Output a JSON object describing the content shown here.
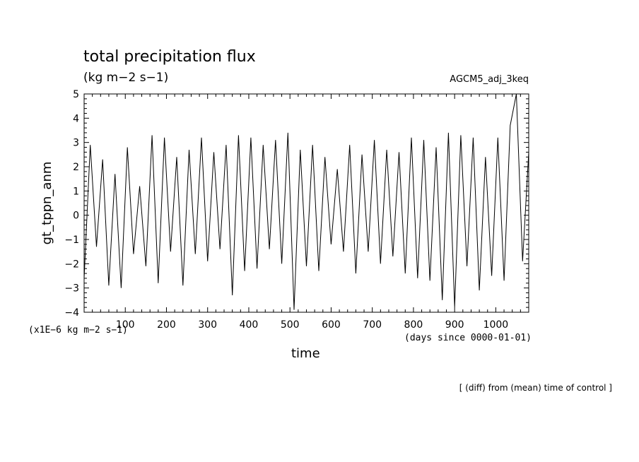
{
  "header": {
    "title": "total precipitation flux",
    "subtitle": "(kg m−2 s−1)",
    "run_name": "AGCM5_adj_3keq"
  },
  "notes": {
    "unit_scale": "(x1E−6 kg m−2 s−1)",
    "x_unit": "(days since 0000-01-01)",
    "footnote": "[ (diff) from (mean) time of control ]"
  },
  "chart_data": {
    "type": "line",
    "title": "total precipitation flux",
    "xlabel": "time",
    "ylabel": "gt_tppn_anm",
    "xlim": [
      0,
      1080
    ],
    "ylim": [
      -4,
      5
    ],
    "x_ticks": [
      100,
      200,
      300,
      400,
      500,
      600,
      700,
      800,
      900,
      1000
    ],
    "y_ticks": [
      -4,
      -3,
      -2,
      -1,
      0,
      1,
      2,
      3,
      4,
      5
    ],
    "grid": false,
    "series": [
      {
        "x": [
          0,
          15,
          30,
          45,
          60,
          75,
          90,
          105,
          120,
          135,
          150,
          165,
          180,
          195,
          210,
          225,
          240,
          255,
          270,
          285,
          300,
          315,
          330,
          345,
          360,
          375,
          390,
          405,
          420,
          435,
          450,
          465,
          480,
          495,
          510,
          525,
          540,
          555,
          570,
          585,
          600,
          615,
          630,
          645,
          660,
          675,
          690,
          705,
          720,
          735,
          750,
          765,
          780,
          795,
          810,
          825,
          840,
          855,
          870,
          885,
          900,
          915,
          930,
          945,
          960,
          975,
          990,
          1005,
          1020,
          1035,
          1050,
          1065,
          1080
        ],
        "values": [
          -2.6,
          2.9,
          -1.3,
          2.3,
          -2.9,
          1.7,
          -3.0,
          2.8,
          -1.6,
          1.2,
          -2.1,
          3.3,
          -2.8,
          3.2,
          -1.5,
          2.4,
          -2.9,
          2.7,
          -1.6,
          3.2,
          -1.9,
          2.6,
          -1.4,
          2.9,
          -3.3,
          3.3,
          -2.3,
          3.2,
          -2.2,
          2.9,
          -1.4,
          3.1,
          -2.0,
          3.4,
          -3.9,
          2.7,
          -2.1,
          2.9,
          -2.3,
          2.4,
          -1.2,
          1.9,
          -1.5,
          2.9,
          -2.4,
          2.5,
          -1.5,
          3.1,
          -2.0,
          2.7,
          -1.7,
          2.6,
          -2.4,
          3.2,
          -2.6,
          3.1,
          -2.7,
          2.8,
          -3.5,
          3.4,
          -3.8,
          3.3,
          -2.1,
          3.2,
          -3.1,
          2.4,
          -2.5,
          3.2,
          -2.7,
          3.7,
          5.0,
          -1.9,
          2.6
        ]
      }
    ]
  }
}
